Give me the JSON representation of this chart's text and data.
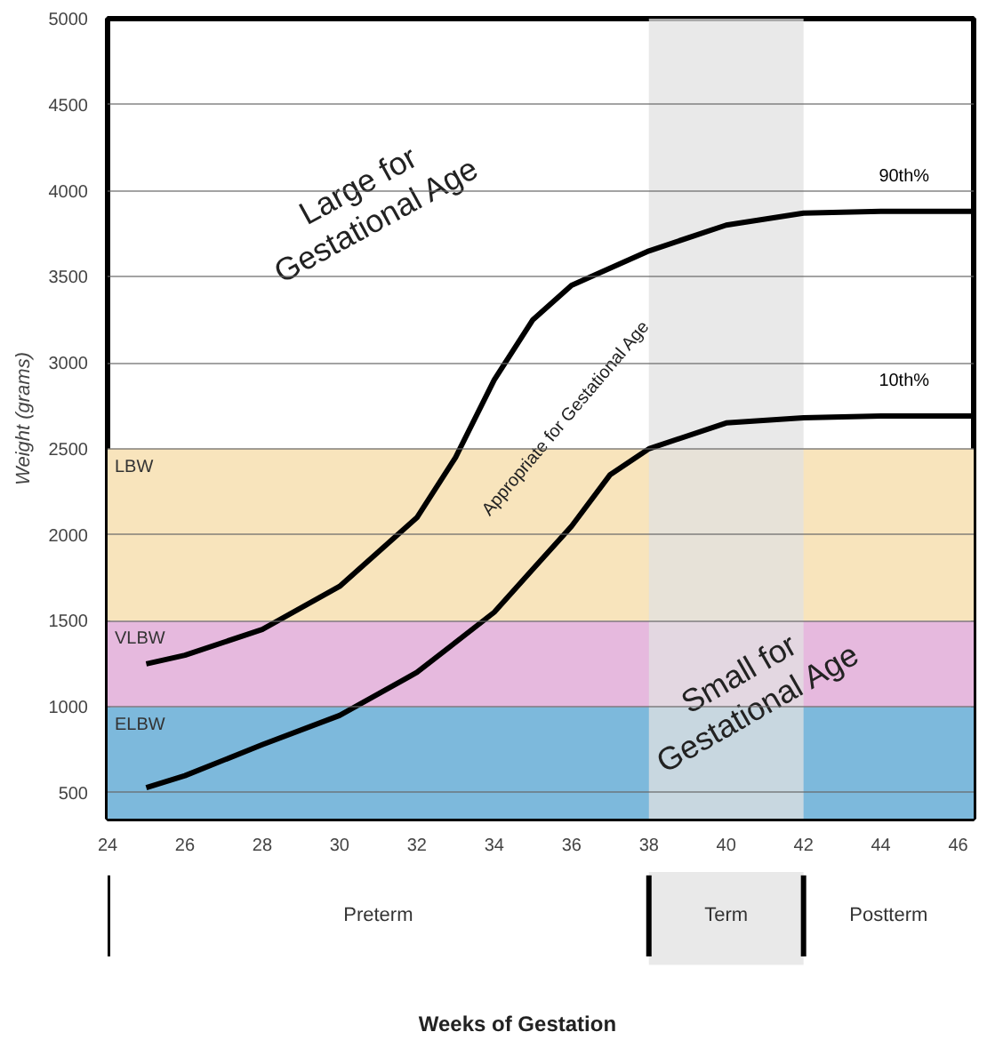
{
  "chart_data": {
    "type": "line",
    "ylabel": "Weight (grams)",
    "xlim": [
      24,
      46.4
    ],
    "ylim": [
      350,
      5000
    ],
    "xticks": [
      24,
      26,
      28,
      30,
      32,
      34,
      36,
      38,
      40,
      42,
      44,
      46
    ],
    "yticks": [
      500,
      1000,
      1500,
      2000,
      2500,
      3000,
      3500,
      4000,
      4500,
      5000
    ],
    "grid": "y",
    "line_style": "solid",
    "marker": "none",
    "series": [
      {
        "name": "90th%",
        "color": "#000000",
        "x": [
          25,
          26,
          28,
          30,
          32,
          33,
          34,
          35,
          36,
          38,
          40,
          42,
          44,
          44.6,
          46.4
        ],
        "values": [
          1250,
          1300,
          1450,
          1700,
          2100,
          2450,
          2900,
          3250,
          3450,
          3650,
          3800,
          3870,
          3880,
          3880,
          3880
        ]
      },
      {
        "name": "10th%",
        "color": "#000000",
        "x": [
          25,
          26,
          28,
          30,
          32,
          34,
          35,
          36,
          37,
          38,
          40,
          42,
          44,
          44.6,
          46.4
        ],
        "values": [
          530,
          600,
          780,
          950,
          1200,
          1550,
          1800,
          2050,
          2350,
          2500,
          2650,
          2680,
          2690,
          2690,
          2690
        ]
      }
    ],
    "bands": [
      {
        "axis": "y",
        "from": 350,
        "to": 1000,
        "label": "ELBW",
        "color": "#7db9dc"
      },
      {
        "axis": "y",
        "from": 1000,
        "to": 1500,
        "label": "VLBW",
        "color": "#e6b9de"
      },
      {
        "axis": "y",
        "from": 1500,
        "to": 2500,
        "label": "LBW",
        "color": "#f8e4bc"
      },
      {
        "axis": "x",
        "from": 38,
        "to": 42,
        "color": "#e2e2e2"
      }
    ],
    "annotations": [
      "Large for\nGestational Age",
      "Appropriate for Gestational Age",
      "Small for\nGestational Age",
      "Preterm",
      "Term",
      "Postterm",
      "Weeks of Gestation"
    ]
  }
}
